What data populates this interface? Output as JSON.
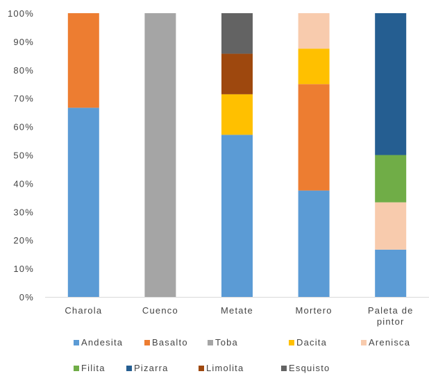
{
  "chart_data": {
    "type": "bar",
    "stacked": true,
    "normalized": true,
    "categories": [
      [
        "Charola"
      ],
      [
        "Cuenco"
      ],
      [
        "Metate"
      ],
      [
        "Mortero"
      ],
      [
        "Paleta de",
        "pintor"
      ]
    ],
    "series": [
      {
        "name": "Andesita",
        "color": "#5B9BD5",
        "values": [
          66.67,
          0,
          57.14,
          37.5,
          16.67
        ]
      },
      {
        "name": "Basalto",
        "color": "#ED7D31",
        "values": [
          33.33,
          0,
          0,
          37.5,
          0
        ]
      },
      {
        "name": "Toba",
        "color": "#A5A5A5",
        "values": [
          0,
          100,
          0,
          0,
          0
        ]
      },
      {
        "name": "Dacita",
        "color": "#FFC000",
        "values": [
          0,
          0,
          14.29,
          12.5,
          0
        ]
      },
      {
        "name": "Arenisca",
        "color": "#F8CBAD",
        "values": [
          0,
          0,
          0,
          12.5,
          16.67
        ]
      },
      {
        "name": "Filita",
        "color": "#70AD47",
        "values": [
          0,
          0,
          0,
          0,
          16.67
        ]
      },
      {
        "name": "Pizarra",
        "color": "#255E91",
        "values": [
          0,
          0,
          0,
          0,
          50
        ]
      },
      {
        "name": "Limolita",
        "color": "#9E480E",
        "values": [
          0,
          0,
          14.29,
          0,
          0
        ]
      },
      {
        "name": "Esquisto",
        "color": "#636363",
        "values": [
          0,
          0,
          14.29,
          0,
          0
        ]
      }
    ],
    "y_ticks": [
      "0%",
      "10%",
      "20%",
      "30%",
      "40%",
      "50%",
      "60%",
      "70%",
      "80%",
      "90%",
      "100%"
    ],
    "ylim": [
      0,
      100
    ],
    "grid": false,
    "legend_position": "bottom"
  }
}
